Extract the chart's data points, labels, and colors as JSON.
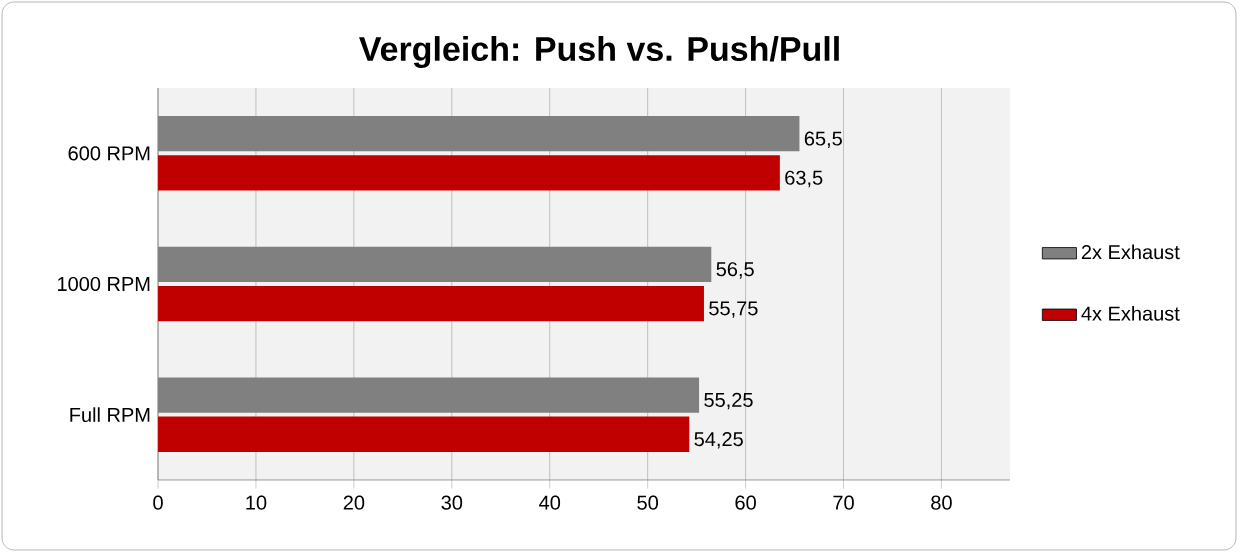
{
  "chart_data": {
    "type": "bar",
    "orientation": "horizontal",
    "title": "Vergleich: Push vs. Push/Pull",
    "categories": [
      "600 RPM",
      "1000 RPM",
      "Full RPM"
    ],
    "series": [
      {
        "name": "2x Exhaust",
        "color": "#808080",
        "values": [
          65.5,
          56.5,
          55.25
        ],
        "value_labels": [
          "65,5",
          "56,5",
          "55,25"
        ]
      },
      {
        "name": "4x Exhaust",
        "color": "#c00000",
        "values": [
          63.5,
          55.75,
          54.25
        ],
        "value_labels": [
          "63,5",
          "55,75",
          "54,25"
        ]
      }
    ],
    "xlim": [
      0,
      87
    ],
    "xticks": [
      0,
      10,
      20,
      30,
      40,
      50,
      60,
      70,
      80
    ],
    "grid": "x",
    "legend": "right"
  }
}
